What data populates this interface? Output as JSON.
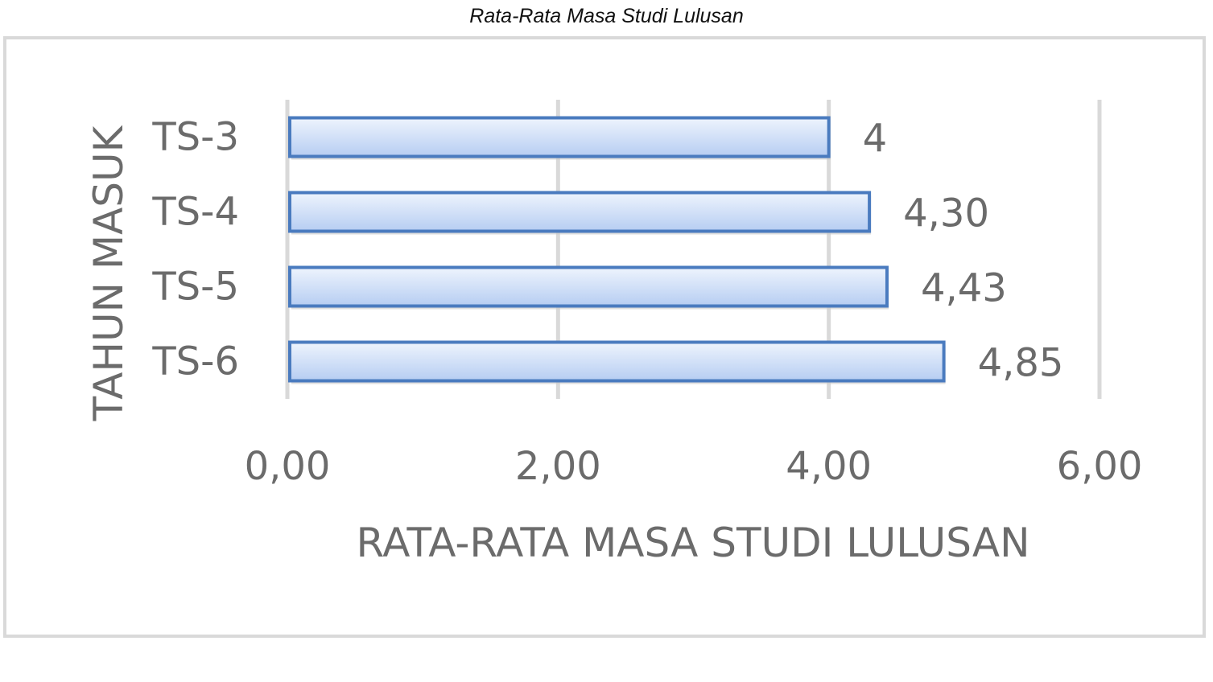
{
  "caption": "Rata-Rata Masa Studi Lulusan",
  "chart_data": {
    "type": "bar",
    "orientation": "horizontal",
    "categories": [
      "TS-3",
      "TS-4",
      "TS-5",
      "TS-6"
    ],
    "values": [
      4,
      4.3,
      4.43,
      4.85
    ],
    "data_labels": [
      "4",
      "4,30",
      "4,43",
      "4,85"
    ],
    "xlabel": "RATA-RATA MASA STUDI LULUSAN",
    "ylabel": "TAHUN MASUK",
    "xlim": [
      0,
      6
    ],
    "xticks": [
      0,
      2,
      4,
      6
    ],
    "xtick_labels": [
      "0,00",
      "2,00",
      "4,00",
      "6,00"
    ],
    "grid": "vertical",
    "legend": "none",
    "colors": {
      "bar_fill_top": "#eef4fd",
      "bar_fill_bottom": "#b6cdf2",
      "bar_stroke": "#4a7bbf",
      "grid": "#d9d9d9",
      "text": "#6b6b6b"
    }
  }
}
